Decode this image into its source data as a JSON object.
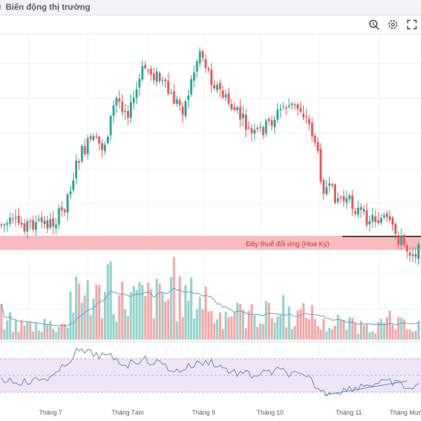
{
  "header": {
    "title": "Biến động thị trường"
  },
  "toolbar": {
    "icons": [
      "zoom-search-icon",
      "gear-icon",
      "fullscreen-icon"
    ]
  },
  "colors": {
    "up": "#26a69a",
    "down": "#ef5350",
    "tax_band": "#f8a5a8",
    "rsi_band": "#ece6f7",
    "ma_line": "#5b9bd5",
    "rsi_line": "#7b78a6"
  },
  "annotation": {
    "label": "Đây thuế đối ứng (Hoa Kỳ)"
  },
  "chart_data": {
    "type": "candlestick",
    "x_ticks": [
      "Tháng 7",
      "Tháng Tám",
      "Tháng 9",
      "Tháng 10",
      "Tháng 11",
      "Tháng Mười Hai"
    ],
    "grid": true,
    "panels": [
      "price",
      "volume",
      "rsi"
    ]
  }
}
